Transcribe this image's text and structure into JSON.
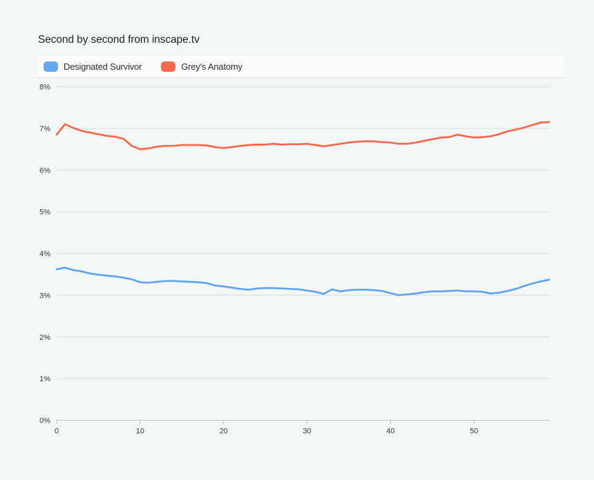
{
  "page": {
    "background": "#f5f6f6"
  },
  "header": {
    "title": "Second by second from inscape.tv"
  },
  "legend": {
    "items": [
      {
        "label": "Designated Survivor",
        "color": "#64a9f0"
      },
      {
        "label": "Grey's Anatomy",
        "color": "#f9694c"
      }
    ]
  },
  "chart_data": {
    "type": "line",
    "title": "Second by second from inscape.tv",
    "xlabel": "",
    "ylabel": "",
    "xlim": [
      0,
      59
    ],
    "ylim": [
      0,
      8
    ],
    "x_ticks": [
      0,
      10,
      20,
      30,
      40,
      50
    ],
    "y_tick_labels": [
      "8%",
      "7%",
      "6%",
      "5%",
      "4%",
      "3%",
      "2%",
      "1%",
      "0%"
    ],
    "grid": true,
    "legend_position": "top-left",
    "series": [
      {
        "name": "Designated Survivor",
        "color": "#5ea5ef",
        "values": [
          3.62,
          3.66,
          3.6,
          3.57,
          3.52,
          3.49,
          3.47,
          3.45,
          3.42,
          3.38,
          3.31,
          3.3,
          3.32,
          3.34,
          3.34,
          3.33,
          3.32,
          3.31,
          3.29,
          3.23,
          3.21,
          3.18,
          3.15,
          3.13,
          3.16,
          3.17,
          3.17,
          3.16,
          3.15,
          3.14,
          3.11,
          3.08,
          3.03,
          3.14,
          3.09,
          3.12,
          3.13,
          3.13,
          3.12,
          3.1,
          3.05,
          3.0,
          3.02,
          3.04,
          3.07,
          3.09,
          3.09,
          3.1,
          3.11,
          3.09,
          3.09,
          3.08,
          3.04,
          3.06,
          3.1,
          3.15,
          3.22,
          3.28,
          3.33,
          3.37
        ]
      },
      {
        "name": "Grey's Anatomy",
        "color": "#f5694b",
        "values": [
          6.85,
          7.1,
          7.01,
          6.94,
          6.9,
          6.86,
          6.82,
          6.8,
          6.75,
          6.58,
          6.5,
          6.52,
          6.56,
          6.58,
          6.58,
          6.6,
          6.6,
          6.6,
          6.59,
          6.55,
          6.53,
          6.55,
          6.58,
          6.6,
          6.61,
          6.61,
          6.63,
          6.61,
          6.62,
          6.62,
          6.63,
          6.6,
          6.57,
          6.6,
          6.63,
          6.66,
          6.68,
          6.69,
          6.69,
          6.67,
          6.66,
          6.63,
          6.63,
          6.66,
          6.7,
          6.74,
          6.78,
          6.79,
          6.85,
          6.81,
          6.78,
          6.79,
          6.81,
          6.86,
          6.93,
          6.97,
          7.02,
          7.08,
          7.14,
          7.15
        ]
      }
    ]
  }
}
